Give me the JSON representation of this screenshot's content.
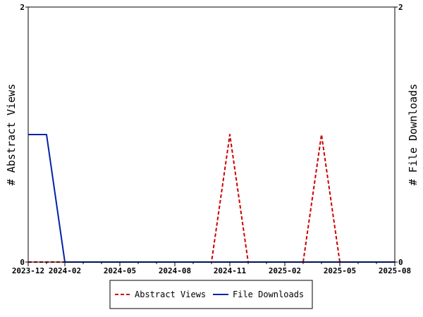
{
  "chart_data": {
    "type": "line",
    "ylabel_left": "# Abstract Views",
    "ylabel_right": "# File Downloads",
    "ylim": [
      0,
      2
    ],
    "y_ticks": [
      "0",
      "2"
    ],
    "y_ticks_right": [
      "0",
      "2"
    ],
    "x_range": [
      "2023-12",
      "2025-08"
    ],
    "x_tick_labels": [
      "2023-12",
      "2024-02",
      "2024-05",
      "2024-08",
      "2024-11",
      "2025-02",
      "2025-05",
      "2025-08"
    ],
    "grid": false,
    "legend_position": "bottom",
    "series": [
      {
        "name": "Abstract Views",
        "color": "#cc0000",
        "style": "dashed",
        "axis": "left",
        "x": [
          "2023-12",
          "2024-01",
          "2024-02",
          "2024-03",
          "2024-04",
          "2024-05",
          "2024-06",
          "2024-07",
          "2024-08",
          "2024-09",
          "2024-10",
          "2024-11",
          "2024-12",
          "2025-01",
          "2025-02",
          "2025-03",
          "2025-04",
          "2025-05",
          "2025-06",
          "2025-07",
          "2025-08"
        ],
        "y": [
          0,
          0,
          0,
          0,
          0,
          0,
          0,
          0,
          0,
          0,
          0,
          1,
          0,
          0,
          0,
          0,
          1,
          0,
          0,
          0,
          0
        ]
      },
      {
        "name": "File Downloads",
        "color": "#0022aa",
        "style": "solid",
        "axis": "right",
        "x": [
          "2023-12",
          "2024-01",
          "2024-02",
          "2024-03",
          "2024-04",
          "2024-05",
          "2024-06",
          "2024-07",
          "2024-08",
          "2024-09",
          "2024-10",
          "2024-11",
          "2024-12",
          "2025-01",
          "2025-02",
          "2025-03",
          "2025-04",
          "2025-05",
          "2025-06",
          "2025-07",
          "2025-08"
        ],
        "y": [
          1,
          1,
          0,
          0,
          0,
          0,
          0,
          0,
          0,
          0,
          0,
          0,
          0,
          0,
          0,
          0,
          0,
          0,
          0,
          0,
          0
        ]
      }
    ]
  }
}
